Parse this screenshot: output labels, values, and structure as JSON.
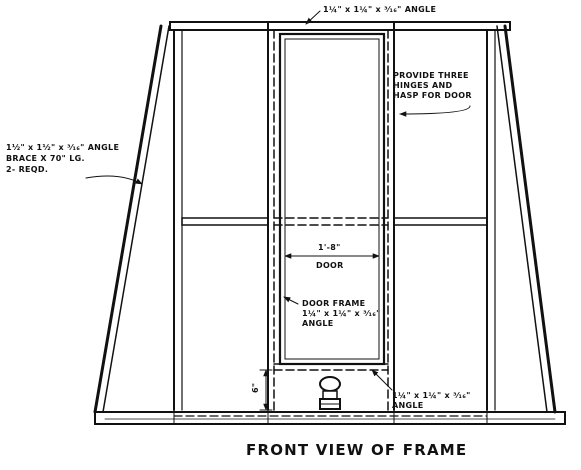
{
  "drawing": {
    "title": "FRONT VIEW OF FRAME",
    "labels": {
      "top_angle": "1¼\" x 1¼\" x ³⁄₁₆\" ANGLE",
      "hinges_line1": "PROVIDE THREE",
      "hinges_line2": "HINGES AND",
      "hinges_line3": "HASP FOR DOOR",
      "brace_line1": "1½\" x 1½\" x ³⁄₁₆\" ANGLE",
      "brace_line2": "BRACE X 70\" LG.",
      "brace_line3": "2- REQD.",
      "door_width": "1'-8\"",
      "door": "DOOR",
      "door_frame_line1": "DOOR FRAME",
      "door_frame_line2": "1¼\" x 1¼\" x ³⁄₁₆\"",
      "door_frame_line3": "ANGLE",
      "sill_dim": "6\"",
      "bottom_angle_line1": "1¼\" x 1¼\" x ³⁄₁₆\"",
      "bottom_angle_line2": "ANGLE"
    }
  }
}
